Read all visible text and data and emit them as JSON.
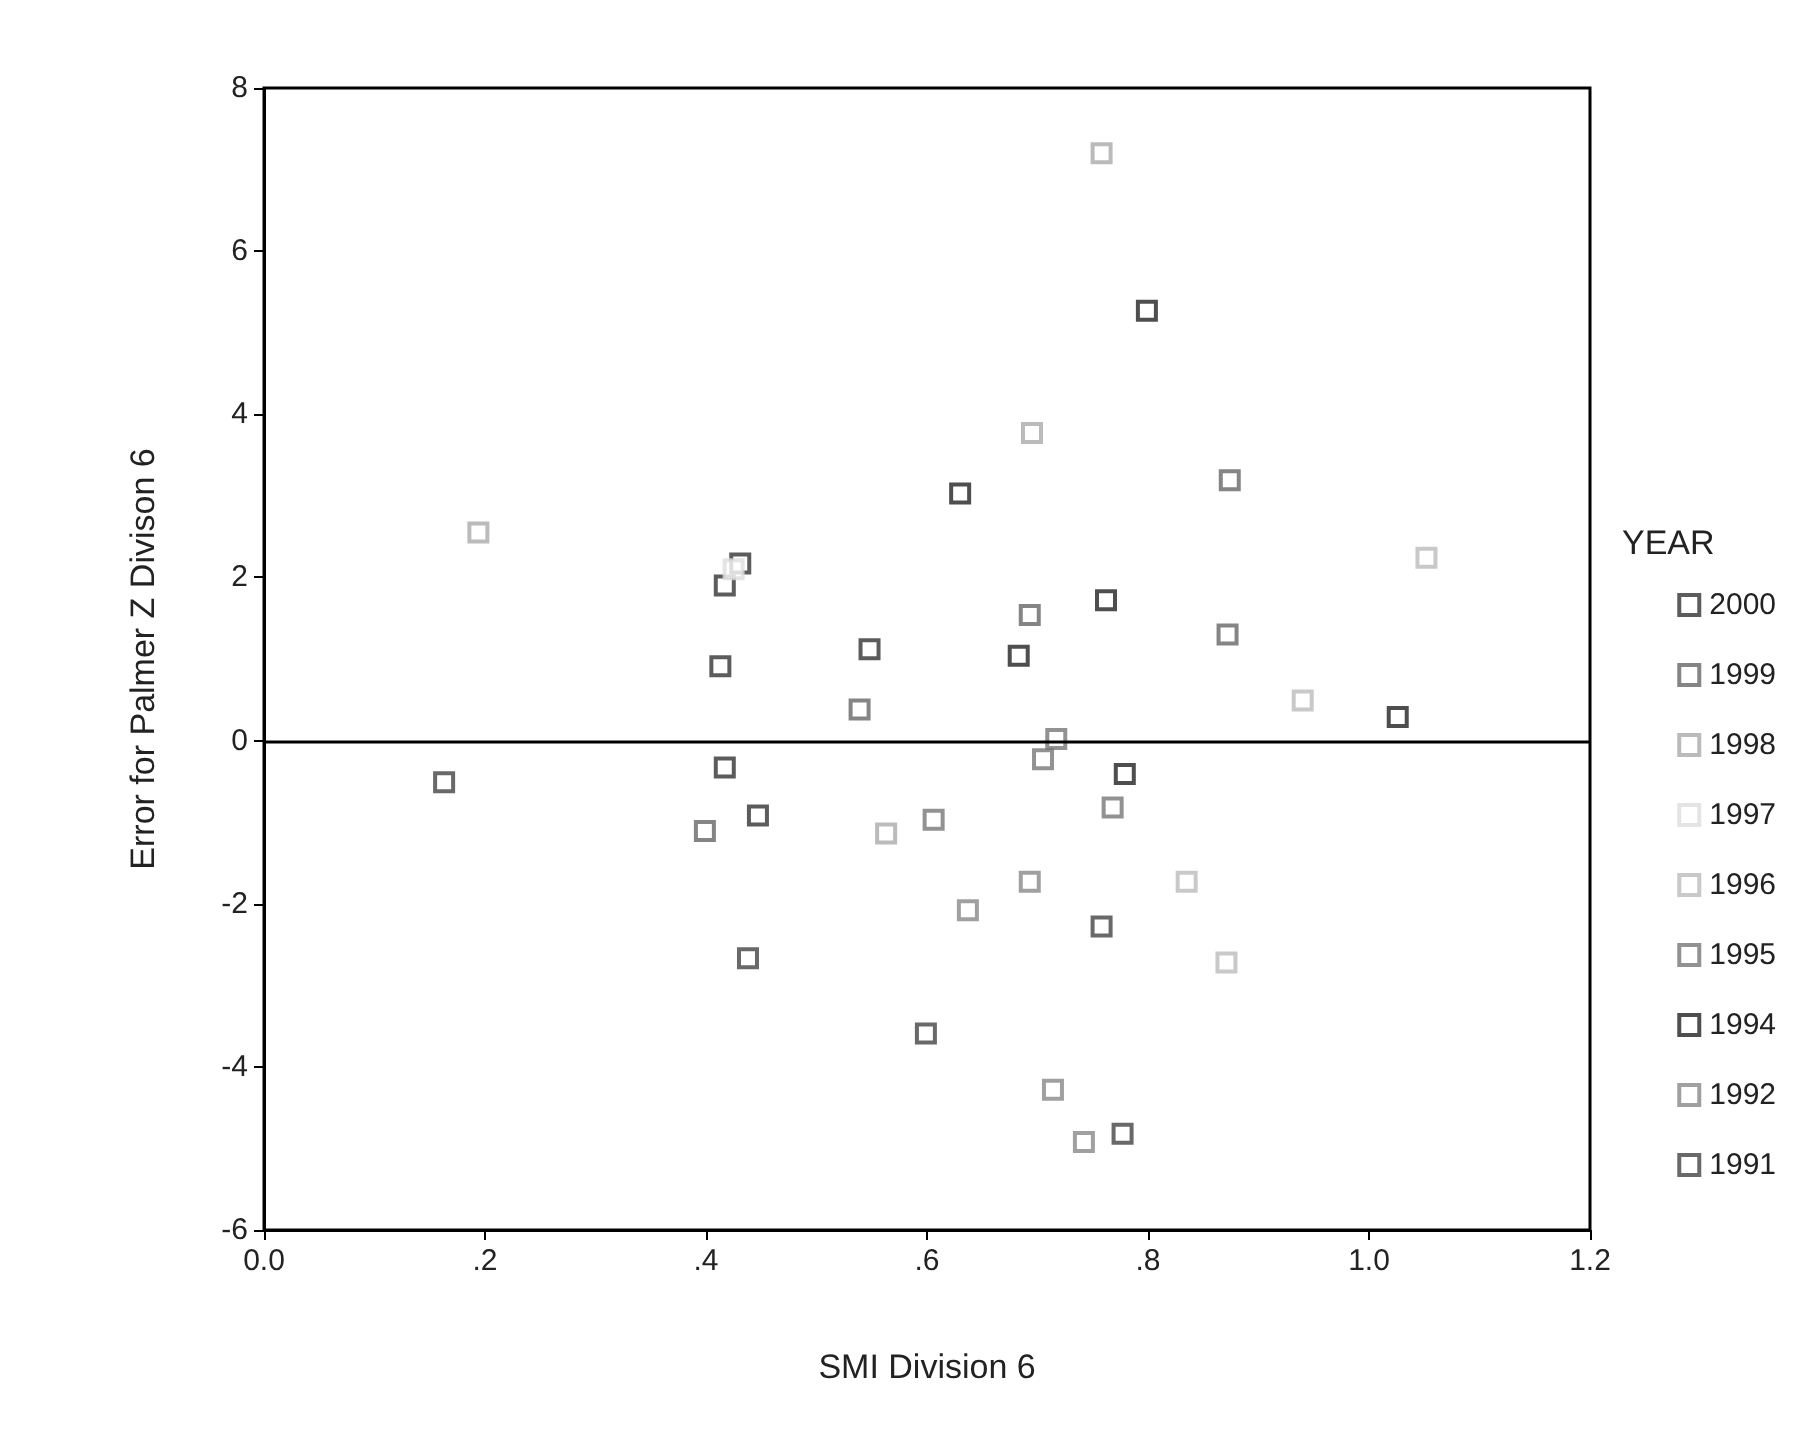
{
  "chart_data": {
    "type": "scatter",
    "xlabel": "SMI Division 6",
    "ylabel": "Error for Palmer Z Divison 6",
    "legend_title": "YEAR",
    "legend": "right",
    "marker": "square",
    "grid": false,
    "xlim": [
      0,
      1.2
    ],
    "xticks": [
      {
        "value": 0,
        "label": "0.0"
      },
      {
        "value": 0.2,
        "label": ".2"
      },
      {
        "value": 0.4,
        "label": ".4"
      },
      {
        "value": 0.6,
        "label": ".6"
      },
      {
        "value": 0.8,
        "label": ".8"
      },
      {
        "value": 1,
        "label": "1.0"
      },
      {
        "value": 1.2,
        "label": "1.2"
      }
    ],
    "ylim": [
      -6,
      8
    ],
    "yticks": [
      -6,
      -4,
      -2,
      0,
      2,
      4,
      6,
      8
    ],
    "ref_lines": [
      {
        "axis": "y",
        "value": 0,
        "color": "#000000"
      }
    ],
    "series": [
      {
        "name": "2000",
        "color": "#333333",
        "x": [
          0.431,
          0.417,
          0.413,
          0.548,
          0.417,
          0.447
        ],
        "values": [
          2.17,
          1.9,
          0.91,
          1.12,
          -0.33,
          -0.92
        ]
      },
      {
        "name": "1999",
        "color": "#666666",
        "x": [
          0.539,
          0.399,
          0.874,
          0.693,
          0.872
        ],
        "values": [
          0.38,
          -1.11,
          3.19,
          1.54,
          1.3
        ]
      },
      {
        "name": "1998",
        "color": "#aaaaaa",
        "x": [
          0.194,
          0.563,
          0.758,
          0.695
        ],
        "values": [
          2.55,
          -1.14,
          7.2,
          3.77
        ]
      },
      {
        "name": "1997",
        "color": "#dddddd",
        "x": [
          0.425
        ],
        "values": [
          2.1
        ]
      },
      {
        "name": "1996",
        "color": "#bbbbbb",
        "x": [
          1.052,
          0.94,
          0.835,
          0.871
        ],
        "values": [
          2.24,
          0.49,
          -1.73,
          -2.72
        ]
      },
      {
        "name": "1995",
        "color": "#777777",
        "x": [
          0.717,
          0.708,
          0.705,
          0.768,
          0.606
        ],
        "values": [
          0.02,
          null,
          -0.23,
          -0.82,
          -0.97
        ]
      },
      {
        "name": "1994",
        "color": "#222222",
        "x": [
          0.799,
          0.63,
          0.762,
          0.683,
          1.026,
          0.779
        ],
        "values": [
          5.27,
          3.03,
          1.72,
          1.04,
          0.29,
          -0.41
        ]
      },
      {
        "name": "1992",
        "color": "#888888",
        "x": [
          0.693,
          0.637,
          0.714,
          0.742
        ],
        "values": [
          -1.73,
          -2.08,
          -4.28,
          -4.92
        ]
      },
      {
        "name": "1991",
        "color": "#444444",
        "x": [
          0.758,
          0.777,
          0.599,
          0.438,
          0.163
        ],
        "values": [
          -2.28,
          -4.82,
          -3.59,
          -2.67,
          -0.51
        ]
      }
    ]
  }
}
